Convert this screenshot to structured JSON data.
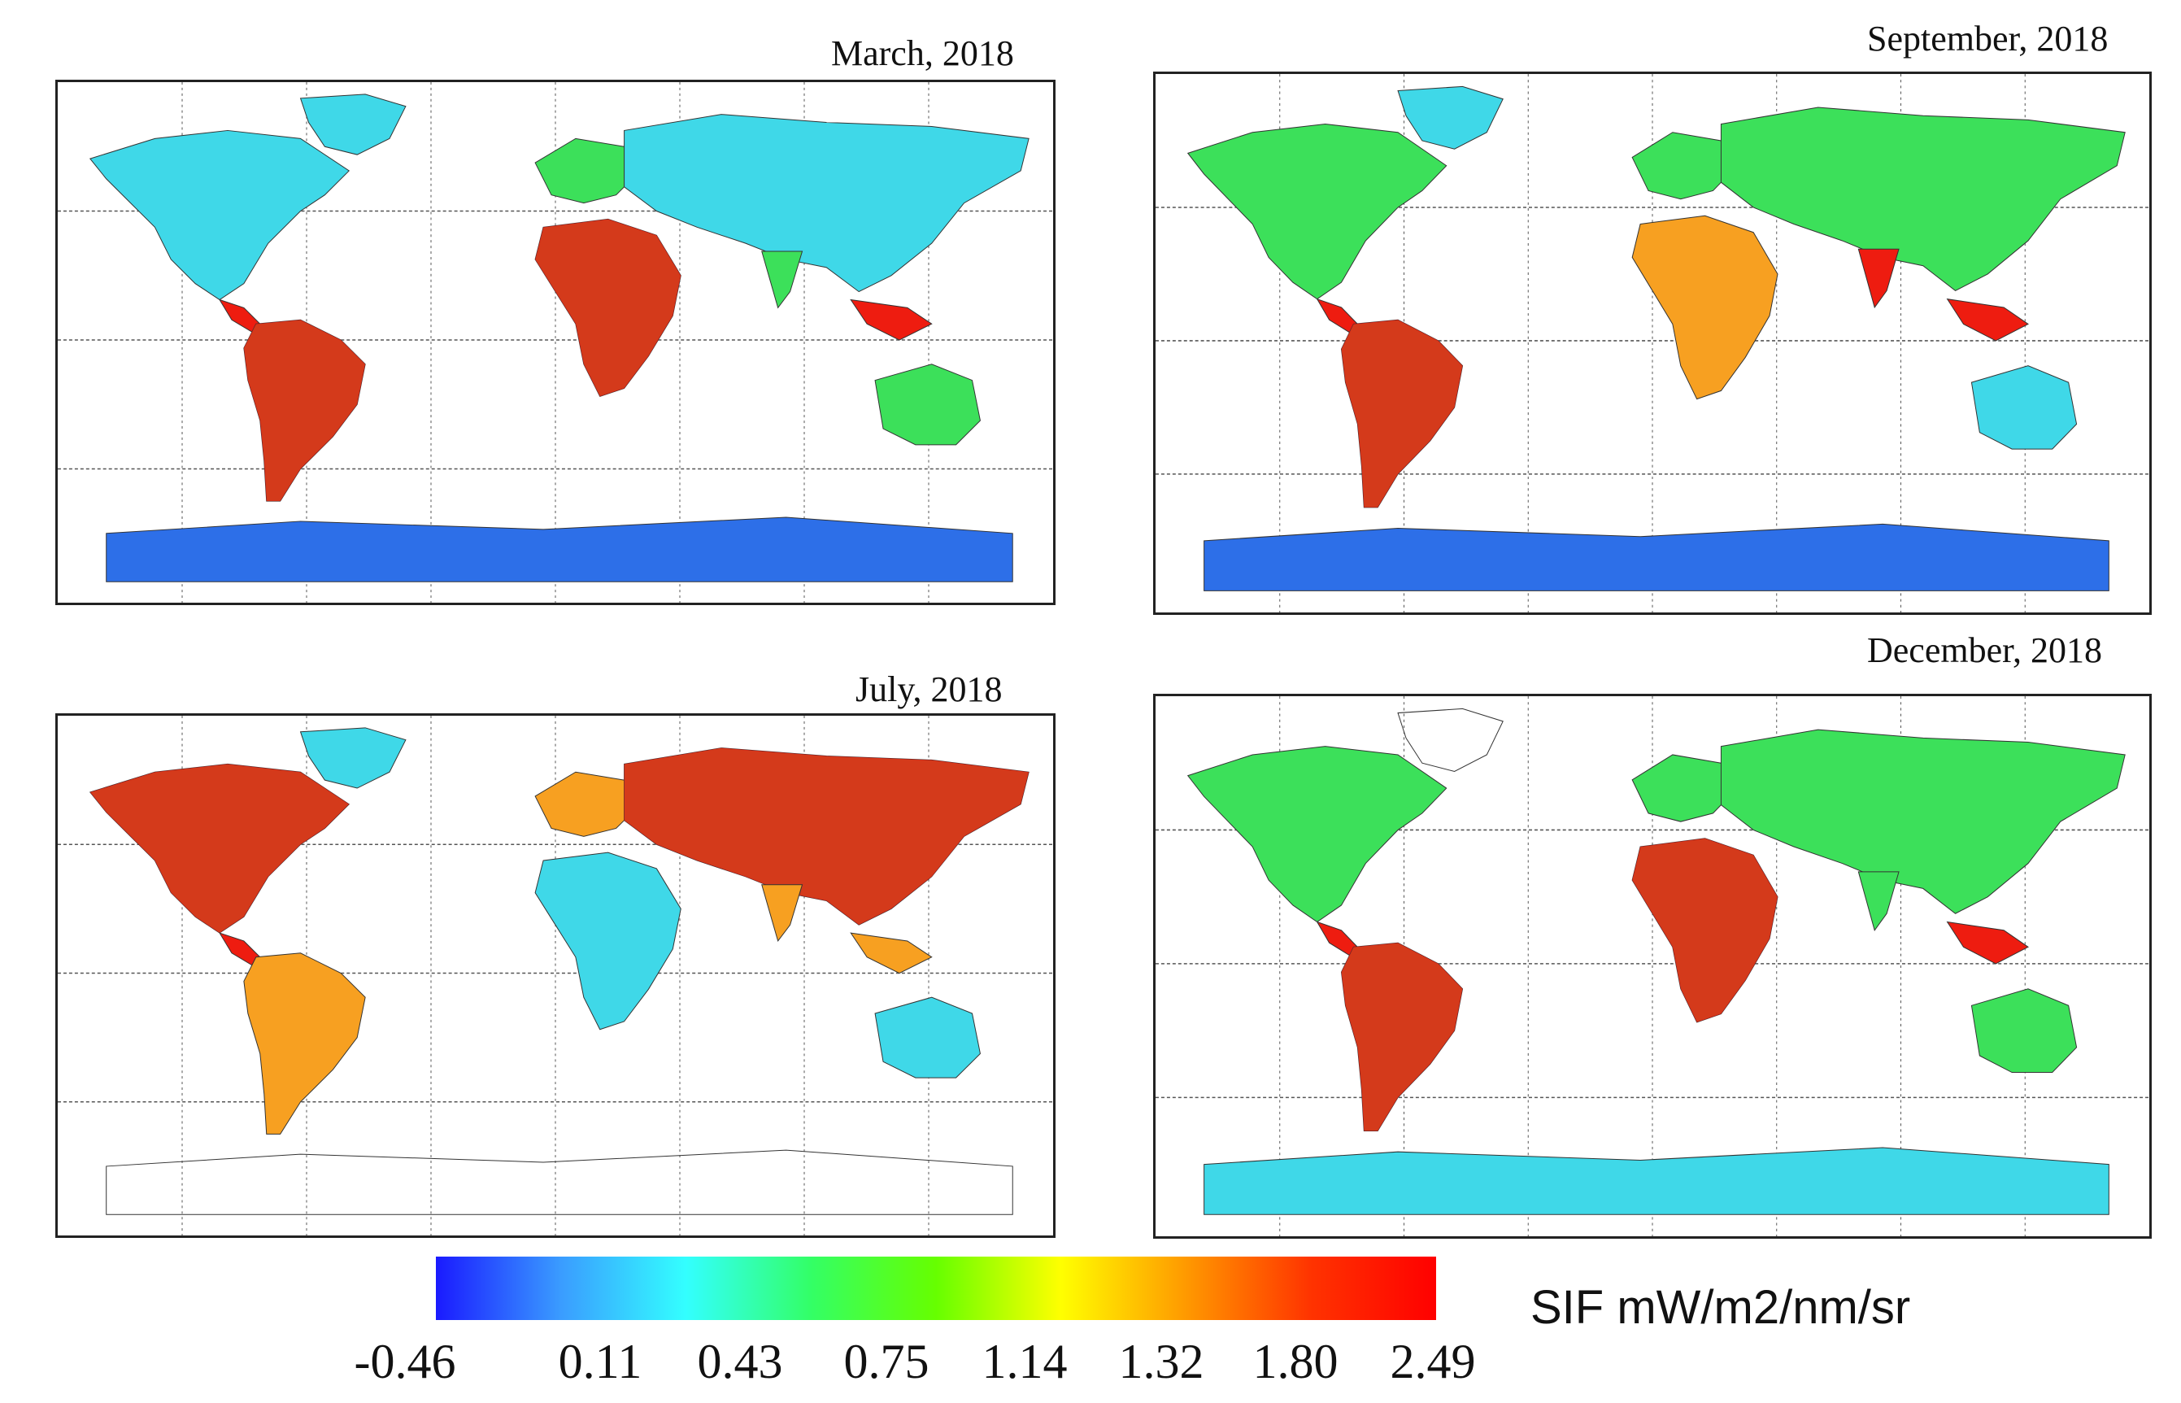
{
  "panels": [
    {
      "title": "March, 2018",
      "month": "march"
    },
    {
      "title": "September, 2018",
      "month": "september"
    },
    {
      "title": "July, 2018",
      "month": "july"
    },
    {
      "title": "December, 2018",
      "month": "december"
    }
  ],
  "colorbar": {
    "unit_label": "SIF mW/m2/nm/sr",
    "ticks": [
      "-0.46",
      "0.11",
      "0.43",
      "0.75",
      "1.14",
      "1.32",
      "1.80",
      "2.49"
    ],
    "range": [
      -0.46,
      2.49
    ],
    "colors": [
      "#1a1aff",
      "#3a9cff",
      "#33ffff",
      "#33ff66",
      "#66ff00",
      "#ffff00",
      "#ff9900",
      "#ff3300",
      "#ff0000"
    ]
  },
  "map_colors": {
    "high": "#ee1c10",
    "mid_high": "#f7a021",
    "mid": "#ffee20",
    "green": "#3ce05a",
    "cyan": "#3fd8e8",
    "blue": "#2d6fe8",
    "land_outline": "#333333",
    "grid": "#555555"
  }
}
